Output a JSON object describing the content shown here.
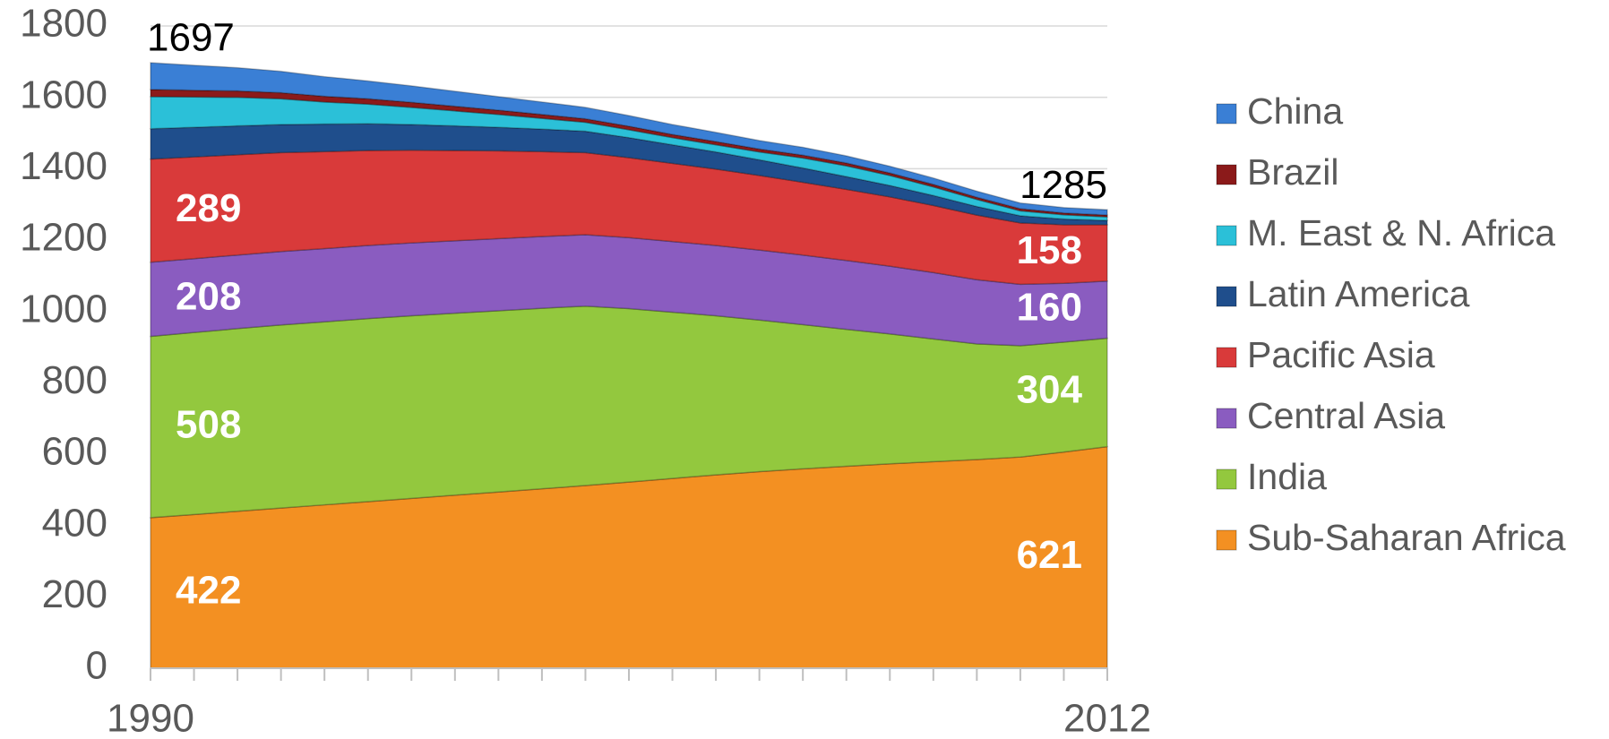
{
  "chart_data": {
    "type": "stacked_area",
    "x": [
      1990,
      1991,
      1992,
      1993,
      1994,
      1995,
      1996,
      1997,
      1998,
      1999,
      2000,
      2001,
      2002,
      2003,
      2004,
      2005,
      2006,
      2007,
      2008,
      2009,
      2010,
      2011,
      2012
    ],
    "xlim": [
      1990,
      2012
    ],
    "xticks": [
      1990,
      2012
    ],
    "ylim": [
      0,
      1800
    ],
    "yticks": [
      0,
      200,
      400,
      600,
      800,
      1000,
      1200,
      1400,
      1600,
      1800
    ],
    "grid": true,
    "legend": "right",
    "series": [
      {
        "name": "China",
        "color": "#3a7fd5",
        "values": [
          75,
          70,
          65,
          60,
          55,
          50,
          46,
          42,
          38,
          35,
          32,
          30,
          28,
          26,
          24,
          22,
          20,
          19,
          18,
          17,
          16,
          15,
          15
        ]
      },
      {
        "name": "Brazil",
        "color": "#8b1a1a",
        "values": [
          20,
          19,
          18,
          17,
          16,
          15,
          14,
          13,
          12,
          11,
          10,
          10,
          9,
          9,
          8,
          8,
          8,
          7,
          7,
          6,
          6,
          5,
          5
        ]
      },
      {
        "name": "M. East & N. Africa",
        "color": "#2bc0d8",
        "values": [
          90,
          85,
          80,
          72,
          62,
          55,
          48,
          42,
          36,
          30,
          25,
          22,
          20,
          20,
          22,
          28,
          30,
          28,
          24,
          20,
          14,
          12,
          10
        ]
      },
      {
        "name": "Latin America",
        "color": "#1f4e8c",
        "values": [
          85,
          83,
          81,
          79,
          77,
          75,
          72,
          69,
          66,
          63,
          60,
          56,
          52,
          48,
          44,
          40,
          36,
          32,
          28,
          24,
          20,
          16,
          12
        ]
      },
      {
        "name": "Pacific Asia",
        "color": "#d93a3a",
        "values": [
          289,
          285,
          281,
          277,
          272,
          266,
          260,
          253,
          246,
          238,
          230,
          224,
          219,
          214,
          209,
          204,
          199,
          194,
          188,
          181,
          172,
          164,
          158
        ]
      },
      {
        "name": "Central Asia",
        "color": "#8a5cc0",
        "values": [
          208,
          207,
          206,
          206,
          205,
          205,
          204,
          203,
          202,
          201,
          200,
          199,
          198,
          197,
          196,
          195,
          193,
          190,
          186,
          180,
          172,
          165,
          160
        ]
      },
      {
        "name": "India",
        "color": "#93c83e",
        "values": [
          508,
          510,
          512,
          513,
          513,
          513,
          512,
          510,
          508,
          506,
          503,
          486,
          466,
          446,
          425,
          404,
          384,
          364,
          344,
          324,
          312,
          308,
          304
        ]
      },
      {
        "name": "Sub-Saharan Africa",
        "color": "#f39022",
        "values": [
          422,
          431,
          440,
          449,
          458,
          467,
          476,
          485,
          494,
          503,
          512,
          522,
          532,
          542,
          551,
          559,
          566,
          573,
          579,
          585,
          592,
          606,
          621
        ]
      }
    ],
    "labeled_series": [
      4,
      5,
      6,
      7
    ],
    "total_labels": [
      1697,
      1285
    ]
  }
}
